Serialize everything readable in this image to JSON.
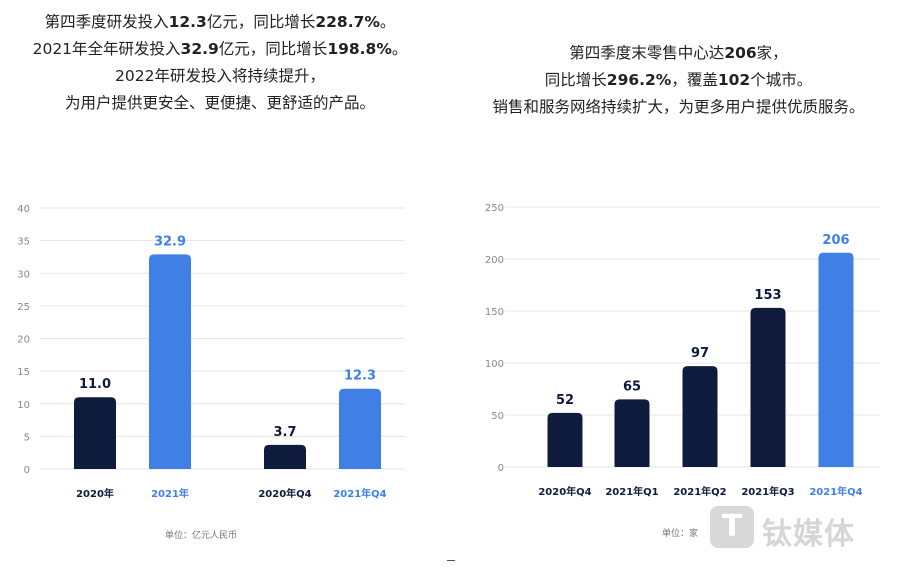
{
  "headline_left": {
    "line1": {
      "a": "第四季度研发投入",
      "b": "12.3",
      "c": "亿元，同比增长",
      "d": "228.7%",
      "e": "。"
    },
    "line2": {
      "a": "2021年全年研发投入",
      "b": "32.9",
      "c": "亿元，同比增长",
      "d": "198.8%",
      "e": "。"
    },
    "line3": "2022年研发投入将持续提升，",
    "line4": "为用户提供更安全、更便捷、更舒适的产品。"
  },
  "headline_right": {
    "line1": {
      "a": "第四季度末零售中心达",
      "b": "206",
      "c": "家，"
    },
    "line2": {
      "a": "同比增长",
      "b": "296.2%",
      "c": "，覆盖",
      "d": "102",
      "e": "个城市。"
    },
    "line3": "销售和服务网络持续扩大，为更多用户提供优质服务。"
  },
  "unit_left": "单位：亿元人民币",
  "unit_right": "单位：家",
  "watermark": {
    "glyph": "T",
    "text": "钛媒体"
  },
  "colors": {
    "dark": "#0f1b3d",
    "accent": "#3f7fe6",
    "grid": "#e6e6e6",
    "axis_text": "#888888"
  },
  "chart_data": [
    {
      "type": "bar",
      "categories": [
        "2020年",
        "2021年",
        "2020年Q4",
        "2021年Q4"
      ],
      "values": [
        11.0,
        32.9,
        3.7,
        12.3
      ],
      "value_labels": [
        "11.0",
        "32.9",
        "3.7",
        "12.3"
      ],
      "highlight": [
        false,
        true,
        false,
        true
      ],
      "ylim": [
        0,
        40
      ],
      "yticks": [
        0,
        5,
        10,
        15,
        20,
        25,
        30,
        35,
        40
      ],
      "ytick_labels": [
        "0",
        "5",
        "10",
        "15",
        "20",
        "25",
        "30",
        "35",
        "40"
      ],
      "grid": true
    },
    {
      "type": "bar",
      "categories": [
        "2020年Q4",
        "2021年Q1",
        "2021年Q2",
        "2021年Q3",
        "2021年Q4"
      ],
      "values": [
        52,
        65,
        97,
        153,
        206
      ],
      "value_labels": [
        "52",
        "65",
        "97",
        "153",
        "206"
      ],
      "highlight": [
        false,
        false,
        false,
        false,
        true
      ],
      "ylim": [
        0,
        250
      ],
      "yticks": [
        0,
        50,
        100,
        150,
        200,
        250
      ],
      "ytick_labels": [
        "0",
        "50",
        "100",
        "150",
        "200",
        "250"
      ],
      "grid": true
    }
  ]
}
